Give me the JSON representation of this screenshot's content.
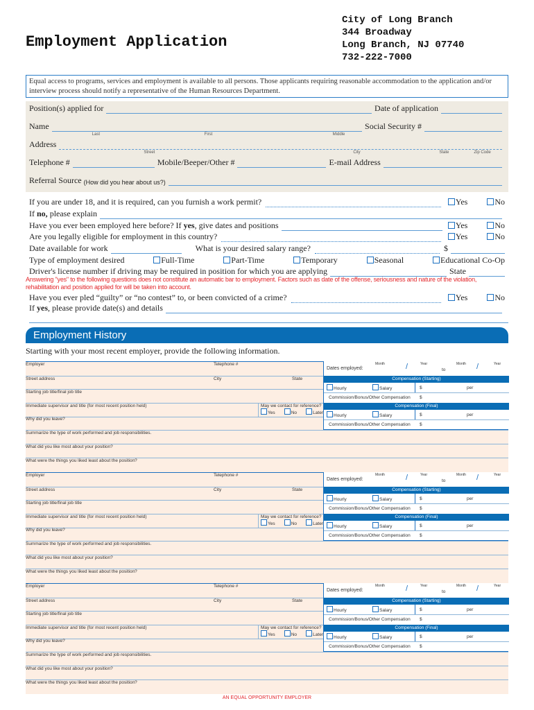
{
  "header": {
    "title": "Employment Application",
    "address": [
      "City of Long Branch",
      "344 Broadway",
      "Long Branch, NJ 07740",
      "732-222-7000"
    ]
  },
  "notice": "Equal access to programs, services and employment is available to all persons. Those applicants requiring reasonable accommodation to the application and/or interview process should notify a representative of the Human Resources Department.",
  "personal": {
    "position": "Position(s) applied for",
    "date": "Date of application",
    "name": "Name",
    "last": "Last",
    "first": "First",
    "middle": "Middle",
    "ssn": "Social Security #",
    "address": "Address",
    "street": "Street",
    "city": "City",
    "state": "State",
    "zip": "Zip Code",
    "telephone": "Telephone #",
    "mobile": "Mobile/Beeper/Other #",
    "email": "E-mail Address",
    "referral": "Referral Source",
    "referral_hint": "(How did you hear about us?)"
  },
  "questions": {
    "yes": "Yes",
    "no": "No",
    "permit": "If you are under 18, and it is required, can you furnish a work permit?",
    "explain_a": "If ",
    "explain_b": "no,",
    "explain_c": " please explain",
    "employed_a": "Have you ever been employed here before? If ",
    "employed_b": "yes",
    "employed_c": ", give dates and positions",
    "eligible": "Are you legally eligible for employment in this country?",
    "date_avail": "Date available for work",
    "salary": "What is your desired salary range?",
    "dollar": "$",
    "type": "Type of employment desired",
    "types": [
      "Full-Time",
      "Part-Time",
      "Temporary",
      "Seasonal",
      "Educational Co-Op"
    ],
    "license": "Driver's license number if driving may be required in position for which you are applying",
    "state": "State",
    "warning": "Answering \"yes\" to the following questions does not constitute an automatic bar to employment. Factors such as date of the offense, seriousness and nature of the violation, rehabilitation and position applied for will be taken into account.",
    "crime": "Have you ever pled “guilty” or “no contest” to, or been convicted of a crime?",
    "details_a": "If ",
    "details_b": "yes",
    "details_c": ", please provide date(s) and details"
  },
  "history": {
    "title": "Employment History",
    "intro": "Starting with your most recent employer, provide the following information.",
    "labels": {
      "employer": "Employer",
      "telephone": "Telephone #",
      "street": "Street address",
      "city": "City",
      "state": "State",
      "job_title": "Starting job title/final job title",
      "supervisor": "Immediate supervisor and title (for most recent position held)",
      "contact": "May we contact for reference?",
      "yes": "Yes",
      "no": "No",
      "later": "Later",
      "why_leave": "Why did you leave?",
      "summarize": "Summarize the type of work performed and job responsibilities.",
      "like_most": "What did you like most about your position?",
      "like_least": "What were the things you liked least about the position?",
      "dates": "Dates employed:",
      "month": "Month",
      "year": "Year",
      "to": "to",
      "slash": "/",
      "comp_start": "Compensation (Starting)",
      "comp_final": "Compensation (Final)",
      "hourly": "Hourly",
      "salary": "Salary",
      "dollar": "$",
      "per": "per",
      "commission": "Commission/Bonus/Other Compensation"
    },
    "employers": [
      {},
      {},
      {}
    ]
  },
  "footer": "AN EQUAL OPPORTUNITY EMPLOYER",
  "colors": {
    "accent": "#0a6db5",
    "warning": "#e3262a",
    "section_bg": "#efebe2",
    "block_bg": "#fdeee3"
  }
}
